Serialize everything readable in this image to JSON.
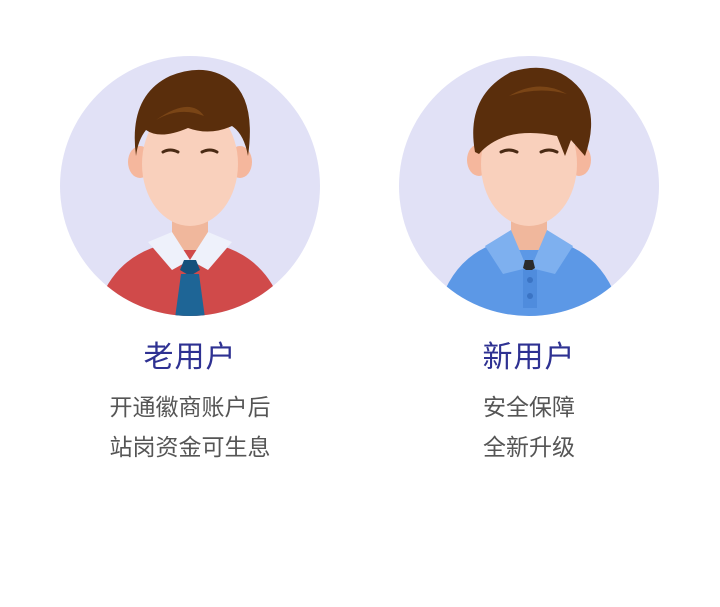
{
  "cards": [
    {
      "title": "老用户",
      "lines": [
        "开通徽商账户后",
        "站岗资金可生息"
      ]
    },
    {
      "title": "新用户",
      "lines": [
        "安全保障",
        "全新升级"
      ]
    }
  ],
  "colors": {
    "title": "#2e3192",
    "text": "#555555",
    "avatar_bg": "#e1e1f6",
    "old_shirt": "#d04a4a",
    "new_shirt": "#5c98e6",
    "hair": "#5a2e0c",
    "skin": "#f8cdb6"
  }
}
